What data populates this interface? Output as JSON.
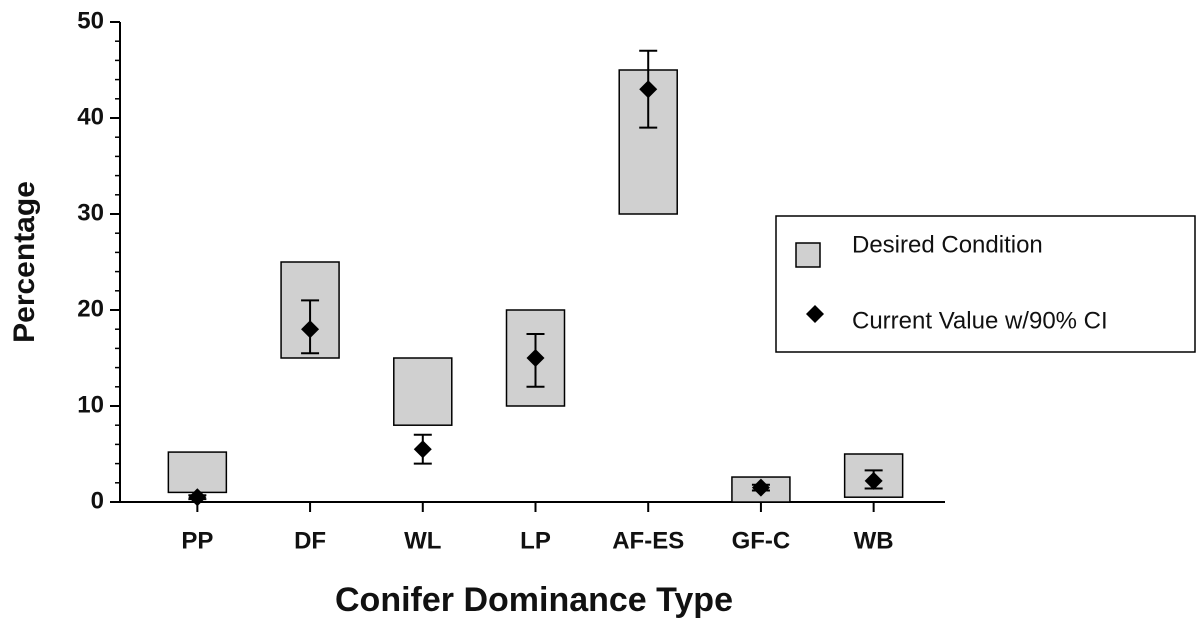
{
  "chart_data": {
    "type": "range-point",
    "x_label": "Conifer Dominance Type",
    "y_label": "Percentage",
    "categories": [
      "PP",
      "DF",
      "WL",
      "LP",
      "AF-ES",
      "GF-C",
      "WB"
    ],
    "ylim": [
      0,
      50
    ],
    "yticks": [
      0,
      10,
      20,
      30,
      40,
      50
    ],
    "minor_yticks": [
      2,
      4,
      6,
      8,
      12,
      14,
      16,
      18,
      22,
      24,
      26,
      28,
      32,
      34,
      36,
      38,
      42,
      44,
      46,
      48
    ],
    "series": [
      {
        "name": "Desired Condition",
        "color": "#d0d0d0",
        "low": [
          1,
          15,
          8,
          10,
          30,
          0,
          0.5
        ],
        "high": [
          5.2,
          25,
          15,
          20,
          45,
          2.6,
          5
        ]
      },
      {
        "name": "Current Value w/90% CI",
        "color": "#000000",
        "values": [
          0.5,
          18,
          5.5,
          15,
          43,
          1.5,
          2.2
        ],
        "ci_low": [
          0.3,
          15.5,
          4,
          12,
          39,
          1.2,
          1.4
        ],
        "ci_high": [
          0.7,
          21,
          7,
          17.5,
          47,
          1.8,
          3.3
        ]
      }
    ]
  }
}
